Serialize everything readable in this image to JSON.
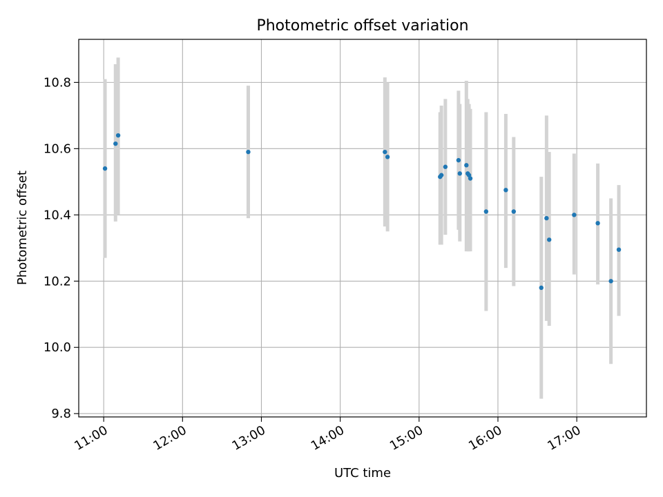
{
  "chart_data": {
    "type": "scatter",
    "title": "Photometric offset variation",
    "xlabel": "UTC time",
    "ylabel": "Photometric offset",
    "x_ticks": [
      "11:00",
      "12:00",
      "13:00",
      "14:00",
      "15:00",
      "16:00",
      "17:00"
    ],
    "y_ticks": [
      "9.8",
      "10.0",
      "10.2",
      "10.4",
      "10.6",
      "10.8"
    ],
    "xlim": [
      "10:41",
      "17:53"
    ],
    "ylim": [
      9.79,
      10.93
    ],
    "grid": true,
    "colors": {
      "marker": "#1f77b4",
      "errorbar": "#d3d3d3",
      "grid": "#b0b0b0"
    },
    "points": [
      {
        "x": "11:01",
        "y": 10.54,
        "ylow": 10.27,
        "yhigh": 10.81
      },
      {
        "x": "11:09",
        "y": 10.615,
        "ylow": 10.38,
        "yhigh": 10.855
      },
      {
        "x": "11:11",
        "y": 10.64,
        "ylow": 10.4,
        "yhigh": 10.875
      },
      {
        "x": "12:50",
        "y": 10.59,
        "ylow": 10.39,
        "yhigh": 10.79
      },
      {
        "x": "14:34",
        "y": 10.59,
        "ylow": 10.365,
        "yhigh": 10.815
      },
      {
        "x": "14:36",
        "y": 10.575,
        "ylow": 10.35,
        "yhigh": 10.8
      },
      {
        "x": "15:16",
        "y": 10.515,
        "ylow": 10.31,
        "yhigh": 10.71
      },
      {
        "x": "15:17",
        "y": 10.52,
        "ylow": 10.31,
        "yhigh": 10.73
      },
      {
        "x": "15:20",
        "y": 10.545,
        "ylow": 10.34,
        "yhigh": 10.75
      },
      {
        "x": "15:30",
        "y": 10.565,
        "ylow": 10.355,
        "yhigh": 10.775
      },
      {
        "x": "15:31",
        "y": 10.525,
        "ylow": 10.32,
        "yhigh": 10.735
      },
      {
        "x": "15:36",
        "y": 10.55,
        "ylow": 10.29,
        "yhigh": 10.805
      },
      {
        "x": "15:37",
        "y": 10.525,
        "ylow": 10.29,
        "yhigh": 10.75
      },
      {
        "x": "15:38",
        "y": 10.52,
        "ylow": 10.29,
        "yhigh": 10.735
      },
      {
        "x": "15:39",
        "y": 10.51,
        "ylow": 10.29,
        "yhigh": 10.72
      },
      {
        "x": "15:51",
        "y": 10.41,
        "ylow": 10.11,
        "yhigh": 10.71
      },
      {
        "x": "16:06",
        "y": 10.475,
        "ylow": 10.24,
        "yhigh": 10.705
      },
      {
        "x": "16:12",
        "y": 10.41,
        "ylow": 10.185,
        "yhigh": 10.635
      },
      {
        "x": "16:33",
        "y": 10.18,
        "ylow": 9.845,
        "yhigh": 10.515
      },
      {
        "x": "16:37",
        "y": 10.39,
        "ylow": 10.08,
        "yhigh": 10.7
      },
      {
        "x": "16:39",
        "y": 10.325,
        "ylow": 10.065,
        "yhigh": 10.59
      },
      {
        "x": "16:58",
        "y": 10.4,
        "ylow": 10.22,
        "yhigh": 10.585
      },
      {
        "x": "17:16",
        "y": 10.375,
        "ylow": 10.19,
        "yhigh": 10.555
      },
      {
        "x": "17:26",
        "y": 10.2,
        "ylow": 9.95,
        "yhigh": 10.45
      },
      {
        "x": "17:32",
        "y": 10.295,
        "ylow": 10.095,
        "yhigh": 10.49
      }
    ]
  }
}
